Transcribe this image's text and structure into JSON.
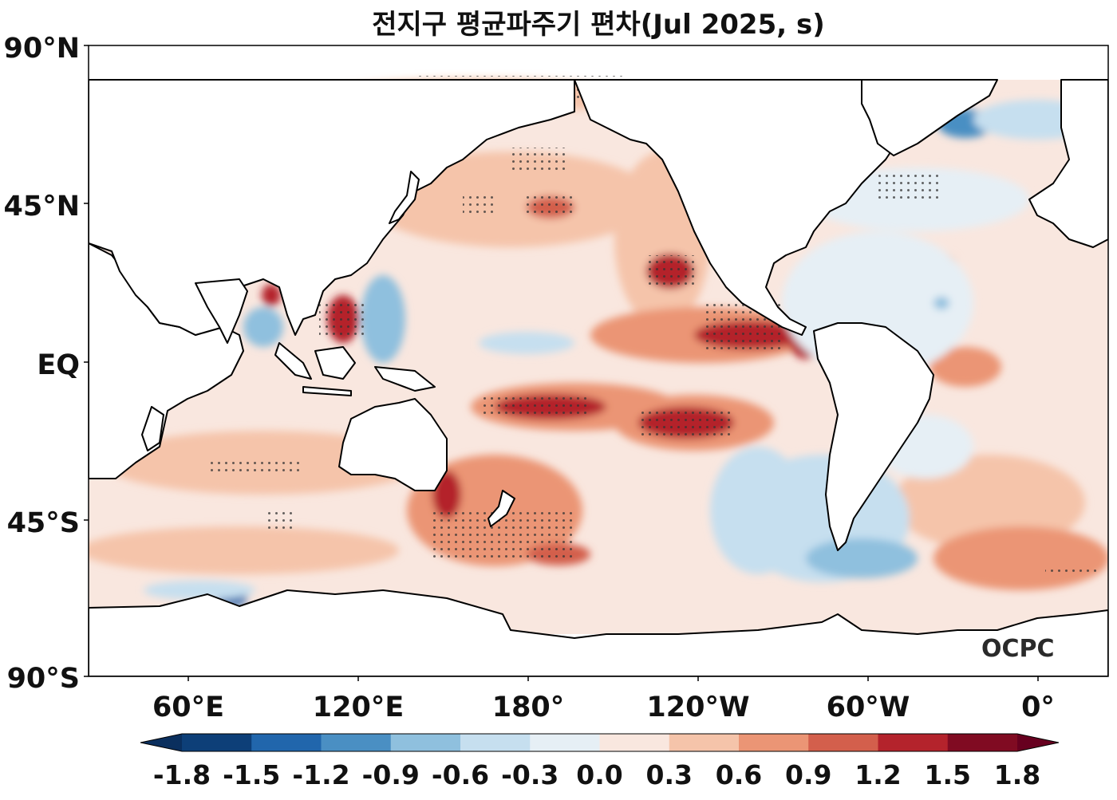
{
  "title": "전지구 평균파주기 편차(Jul 2025, s)",
  "y_ticks": [
    "90°N",
    "45°N",
    "EQ",
    "45°S",
    "90°S"
  ],
  "x_ticks": [
    "60°E",
    "120°E",
    "180°",
    "120°W",
    "60°W",
    "0°"
  ],
  "colorbar": {
    "ticks": [
      "-1.8",
      "-1.5",
      "-1.2",
      "-0.9",
      "-0.6",
      "-0.3",
      "0.0",
      "0.3",
      "0.6",
      "0.9",
      "1.2",
      "1.5",
      "1.8"
    ],
    "colors": [
      "#0d3f78",
      "#2166ac",
      "#4a8fc3",
      "#8fc0de",
      "#c6dfef",
      "#e6eff5",
      "#f9e7df",
      "#f5c4aa",
      "#eb9575",
      "#d35f4c",
      "#b4232c",
      "#800b22"
    ],
    "extend_low": "#0a2f5e",
    "extend_high": "#67001f"
  },
  "logo": "OCPC",
  "land_color": "#ffffff",
  "ocean_background": "#f9e7df"
}
